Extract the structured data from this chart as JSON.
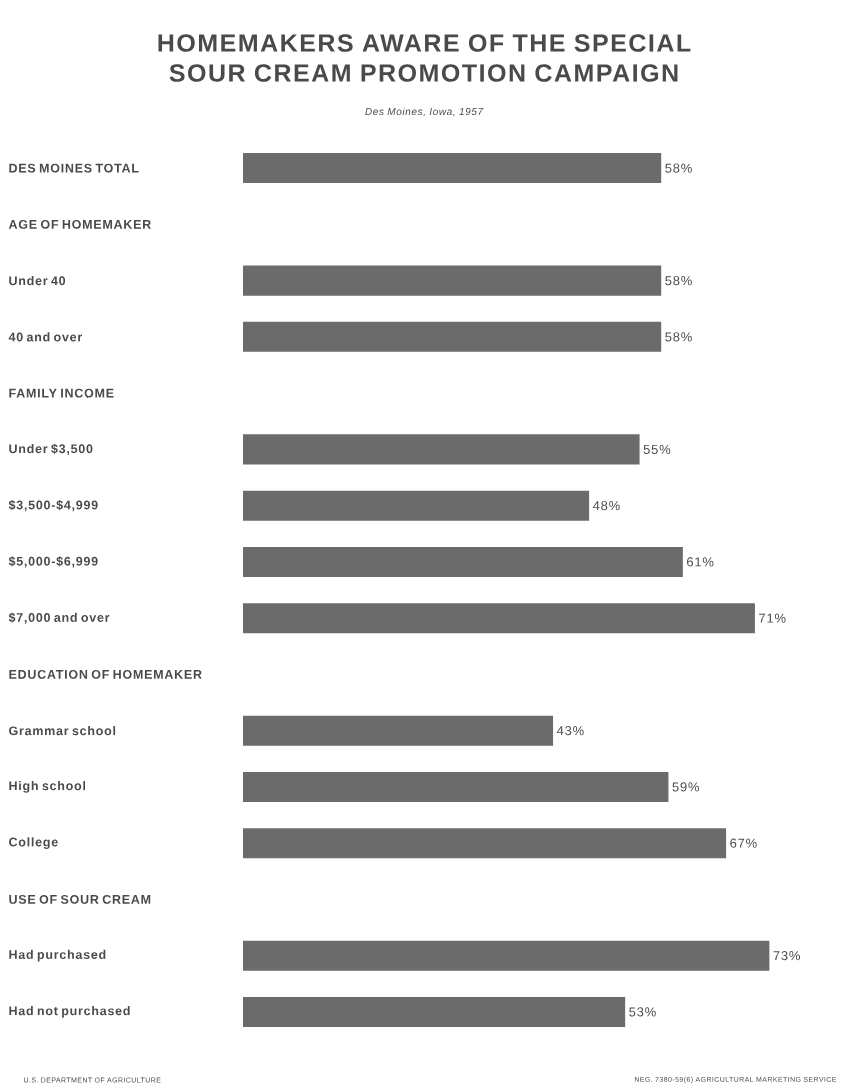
{
  "chart_data": {
    "type": "bar",
    "orientation": "horizontal",
    "title": "HOMEMAKERS AWARE OF THE SPECIAL SOUR CREAM PROMOTION CAMPAIGN",
    "subtitle": "Des Moines, Iowa, 1957",
    "categories": [
      "DES MOINES TOTAL",
      "AGE OF HOMEMAKER",
      "Under 40",
      "40 and over",
      "FAMILY INCOME",
      "Under $3,500",
      "$3,500-$4,999",
      "$5,000-$6,999",
      "$7,000 and over",
      "EDUCATION OF HOMEMAKER",
      "Grammar school",
      "High school",
      "College",
      "USE OF SOUR CREAM",
      "Had purchased",
      "Had not purchased"
    ],
    "values": [
      58,
      null,
      58,
      58,
      null,
      55,
      48,
      61,
      71,
      null,
      43,
      59,
      67,
      null,
      73,
      53
    ],
    "value_labels": [
      "58%",
      null,
      "58%",
      "58%",
      null,
      "55%",
      "48%",
      "61%",
      "71%",
      null,
      "43%",
      "59%",
      "67%",
      null,
      "73%",
      "53%"
    ],
    "color": "#6b6b6b",
    "annotations": [
      "U.S. DEPARTMENT OF AGRICULTURE",
      "NEG. 7380-59(6) AGRICULTURAL MARKETING SERVICE"
    ]
  }
}
